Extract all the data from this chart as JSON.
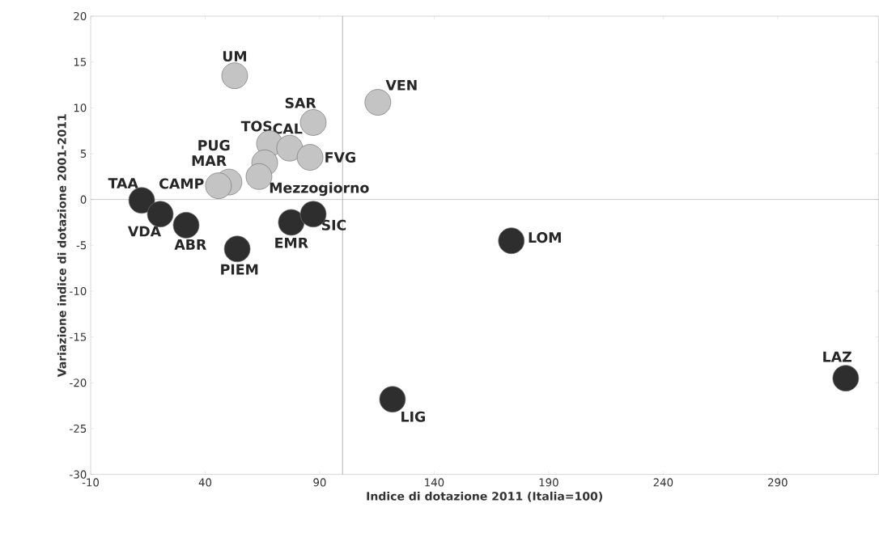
{
  "chart_data": {
    "type": "scatter",
    "xlabel": "Indice di dotazione 2011 (Italia=100)",
    "ylabel": "Variazione indice di dotazione 2001-2011",
    "xlim": [
      -10,
      334
    ],
    "xticks": [
      -10,
      40,
      90,
      140,
      190,
      240,
      290
    ],
    "ylim": [
      -30,
      20
    ],
    "yticks": [
      -30,
      -25,
      -20,
      -15,
      -10,
      -5,
      0,
      5,
      10,
      15,
      20
    ],
    "grid": false,
    "ref_lines": [
      {
        "axis": "x",
        "value": 100,
        "color": "#a0a0a0"
      },
      {
        "axis": "y",
        "value": 0,
        "color": "#a0a0a0"
      }
    ],
    "series": [
      {
        "color": "#c4c4c4",
        "x": [
          52.9,
          115.4,
          87.2,
          68.1,
          76.9,
          50.4,
          66,
          85.8,
          45.8,
          63.5
        ],
        "values": [
          13.5,
          10.6,
          8.4,
          6.1,
          5.6,
          1.9,
          4.0,
          4.6,
          1.5,
          2.5
        ]
      },
      {
        "color": "#2e2e2e",
        "x": [
          12.3,
          20.4,
          31.7,
          54,
          77.6,
          87.2,
          173.7,
          121.8,
          319.7
        ],
        "values": [
          -0.1,
          -1.6,
          -2.8,
          -5.4,
          -2.5,
          -1.6,
          -4.5,
          -21.8,
          -19.5
        ]
      }
    ],
    "annotations": [
      {
        "text": "UM",
        "x": 52.9,
        "y": 13.5
      },
      {
        "text": "VEN",
        "x": 115.4,
        "y": 10.6
      },
      {
        "text": "SAR",
        "x": 87.2,
        "y": 8.4
      },
      {
        "text": "TOS",
        "x": 68.1,
        "y": 6.1
      },
      {
        "text": "CAL",
        "x": 76.9,
        "y": 5.6
      },
      {
        "text": "PUG",
        "x": 50.4,
        "y": 1.9
      },
      {
        "text": "MAR",
        "x": 66,
        "y": 4.0
      },
      {
        "text": "FVG",
        "x": 85.8,
        "y": 4.6
      },
      {
        "text": "CAMP",
        "x": 45.8,
        "y": 1.5
      },
      {
        "text": "Mezzogiorno",
        "x": 63.5,
        "y": 2.5
      },
      {
        "text": "TAA",
        "x": 12.3,
        "y": -0.1
      },
      {
        "text": "VDA",
        "x": 20.4,
        "y": -1.6
      },
      {
        "text": "ABR",
        "x": 31.7,
        "y": -2.8
      },
      {
        "text": "PIEM",
        "x": 54,
        "y": -5.4
      },
      {
        "text": "EMR",
        "x": 77.6,
        "y": -2.5
      },
      {
        "text": "SIC",
        "x": 87.2,
        "y": -1.6
      },
      {
        "text": "LOM",
        "x": 173.7,
        "y": -4.5
      },
      {
        "text": "LIG",
        "x": 121.8,
        "y": -21.8
      },
      {
        "text": "LAZ",
        "x": 319.7,
        "y": -19.5
      }
    ]
  }
}
